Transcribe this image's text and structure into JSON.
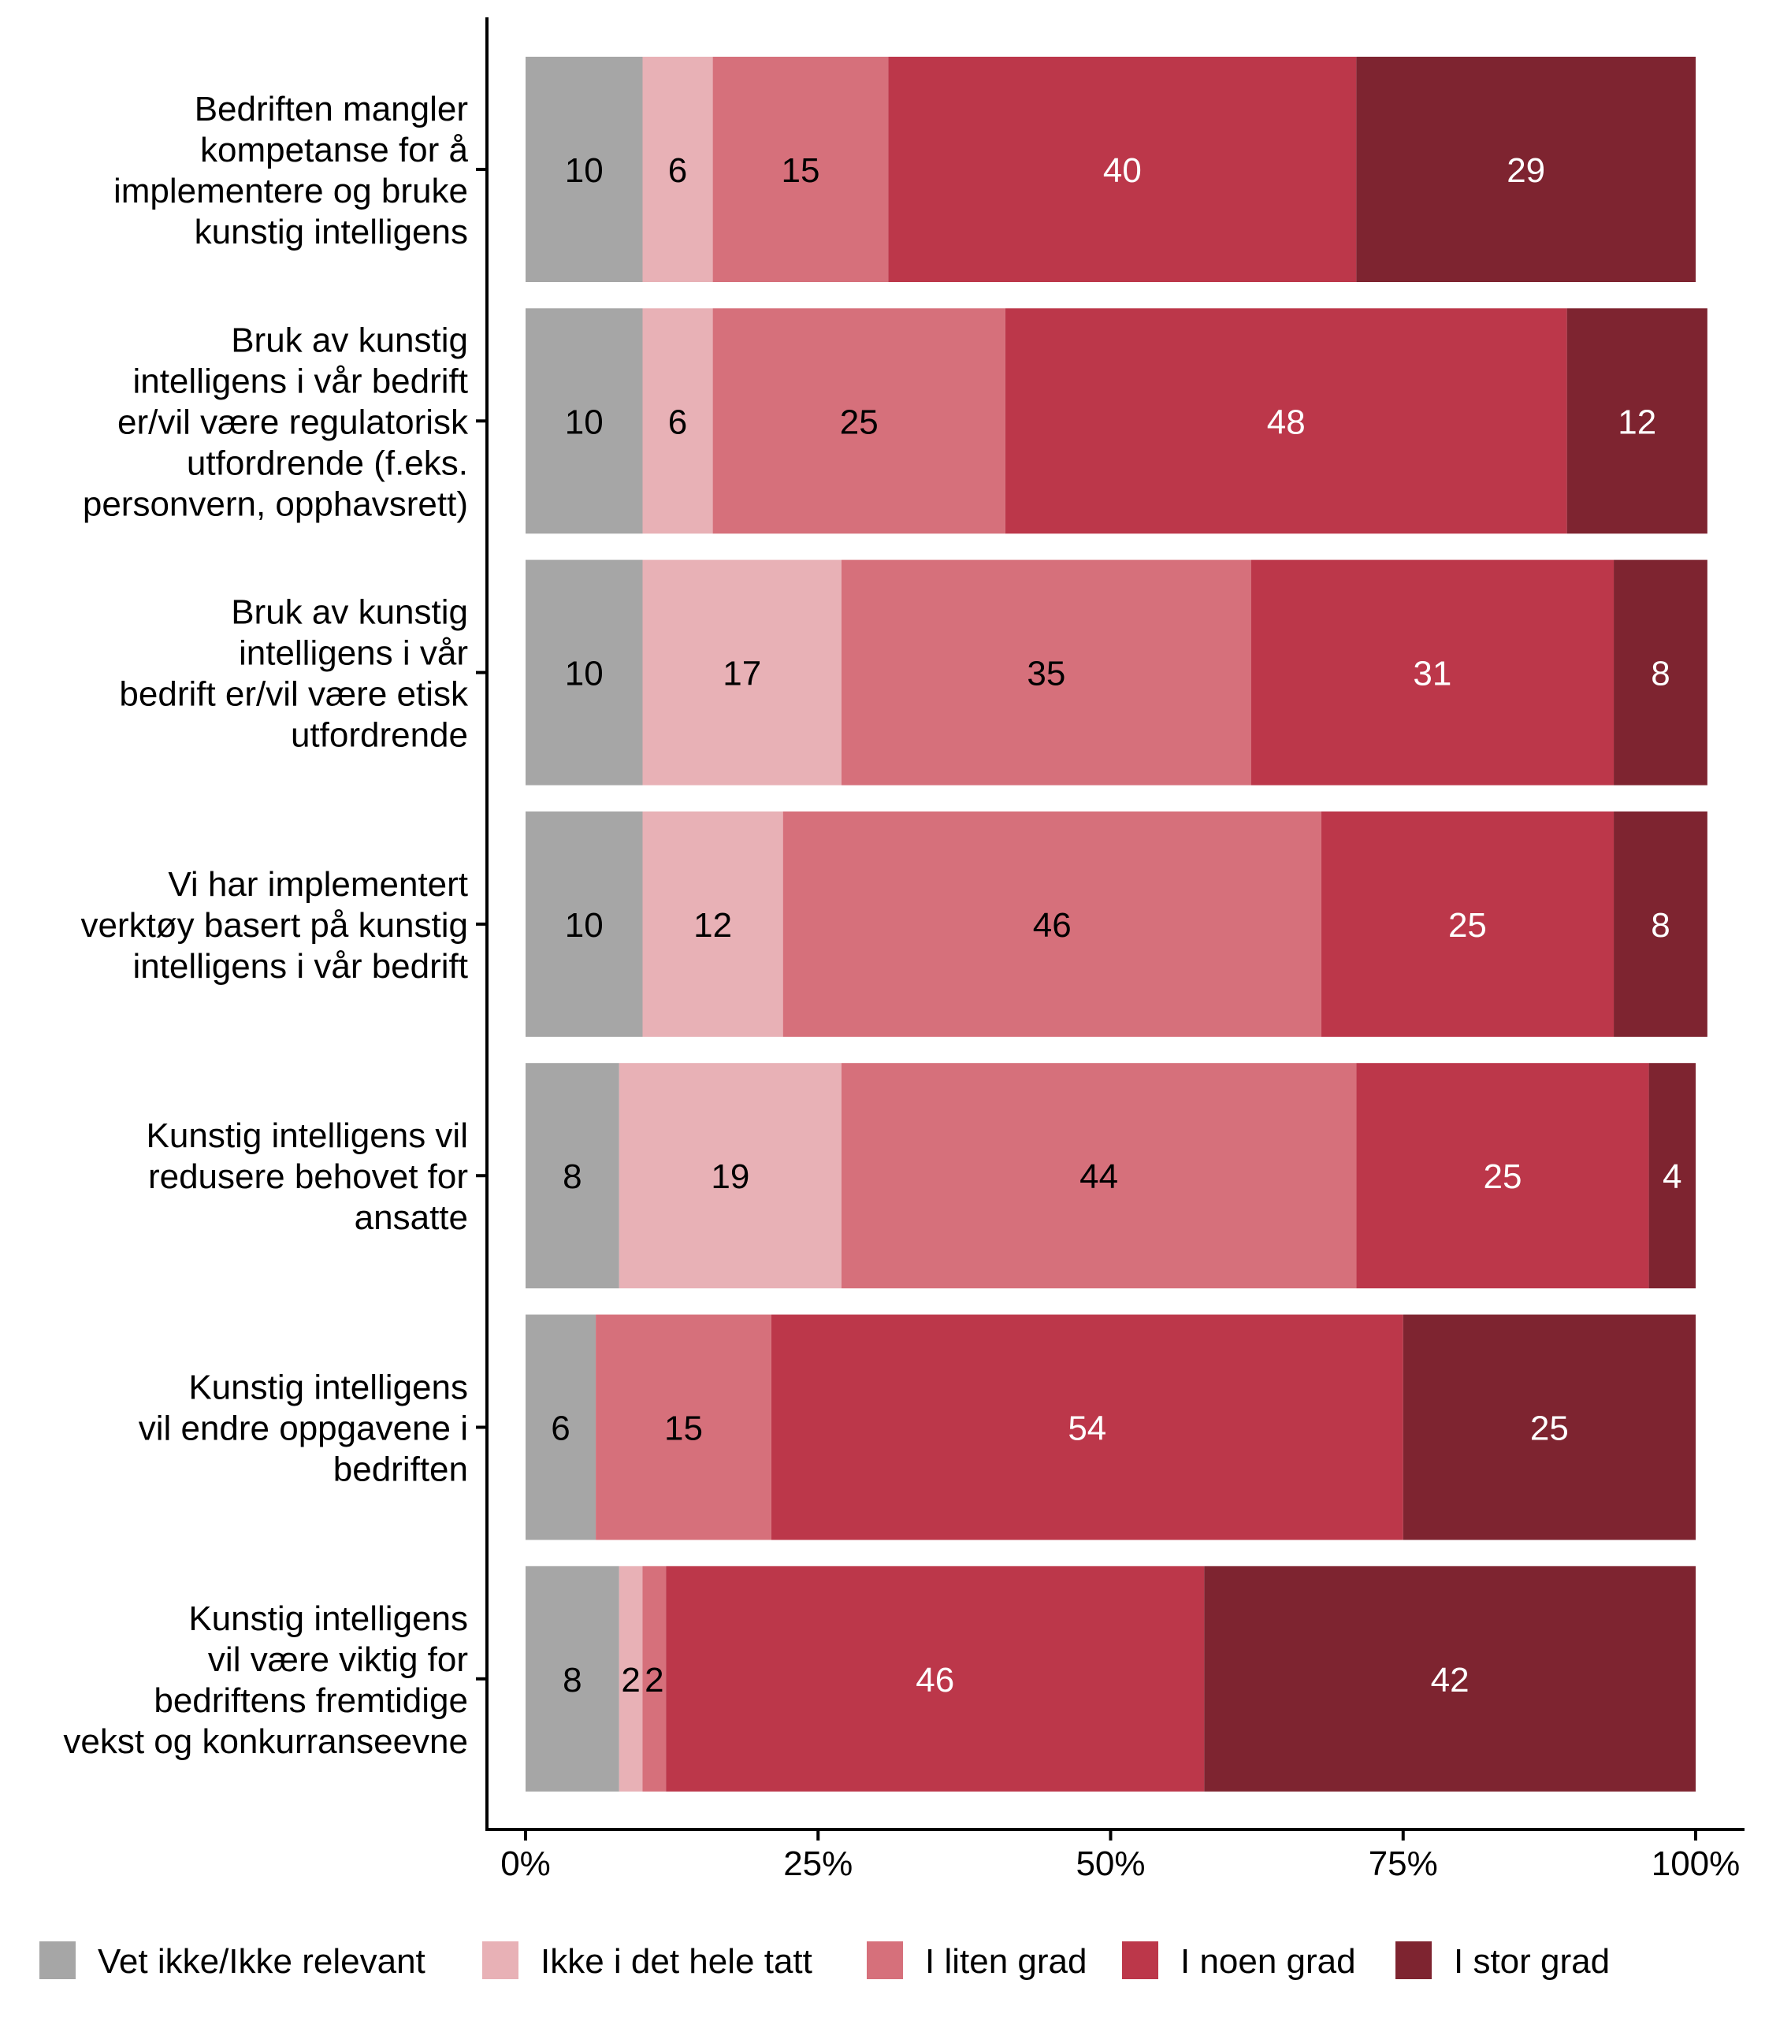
{
  "chart_data": {
    "type": "bar",
    "orientation": "horizontal",
    "stacked": true,
    "title": "",
    "xlabel": "",
    "ylabel": "",
    "xlim": [
      0,
      100
    ],
    "x_ticks": [
      "0%",
      "25%",
      "50%",
      "75%",
      "100%"
    ],
    "legend_position": "bottom",
    "categories": [
      [
        "Bedriften mangler",
        "kompetanse for å",
        "implementere og bruke",
        "kunstig intelligens"
      ],
      [
        "Bruk av kunstig",
        "intelligens i vår bedrift",
        "er/vil være regulatorisk",
        "utfordrende (f.eks.",
        "personvern, opphavsrett)"
      ],
      [
        "Bruk av kunstig",
        "intelligens i vår",
        "bedrift er/vil være etisk",
        "utfordrende"
      ],
      [
        "Vi har implementert",
        "verktøy basert på kunstig",
        "intelligens i vår bedrift"
      ],
      [
        "Kunstig intelligens vil",
        "redusere behovet for",
        "ansatte"
      ],
      [
        "Kunstig intelligens",
        "vil endre oppgavene i",
        "bedriften"
      ],
      [
        "Kunstig intelligens",
        "vil være viktig for",
        "bedriftens fremtidige",
        "vekst og konkurranseevne"
      ]
    ],
    "series": [
      {
        "name": "Vet ikke/Ikke relevant",
        "color": "#A6A6A6",
        "label_color": "#000000",
        "values": [
          10,
          10,
          10,
          10,
          8,
          6,
          8
        ]
      },
      {
        "name": "Ikke i det hele tatt",
        "color": "#E8B1B6",
        "label_color": "#000000",
        "values": [
          6,
          6,
          17,
          12,
          19,
          0,
          2
        ]
      },
      {
        "name": "I liten grad",
        "color": "#D6707B",
        "label_color": "#000000",
        "values": [
          15,
          25,
          35,
          46,
          44,
          15,
          2
        ]
      },
      {
        "name": "I noen grad",
        "color": "#BC374A",
        "label_color": "#FFFFFF",
        "values": [
          40,
          48,
          31,
          25,
          25,
          54,
          46
        ]
      },
      {
        "name": "I stor grad",
        "color": "#7E2430",
        "label_color": "#FFFFFF",
        "values": [
          29,
          12,
          8,
          8,
          4,
          25,
          42
        ]
      }
    ]
  }
}
